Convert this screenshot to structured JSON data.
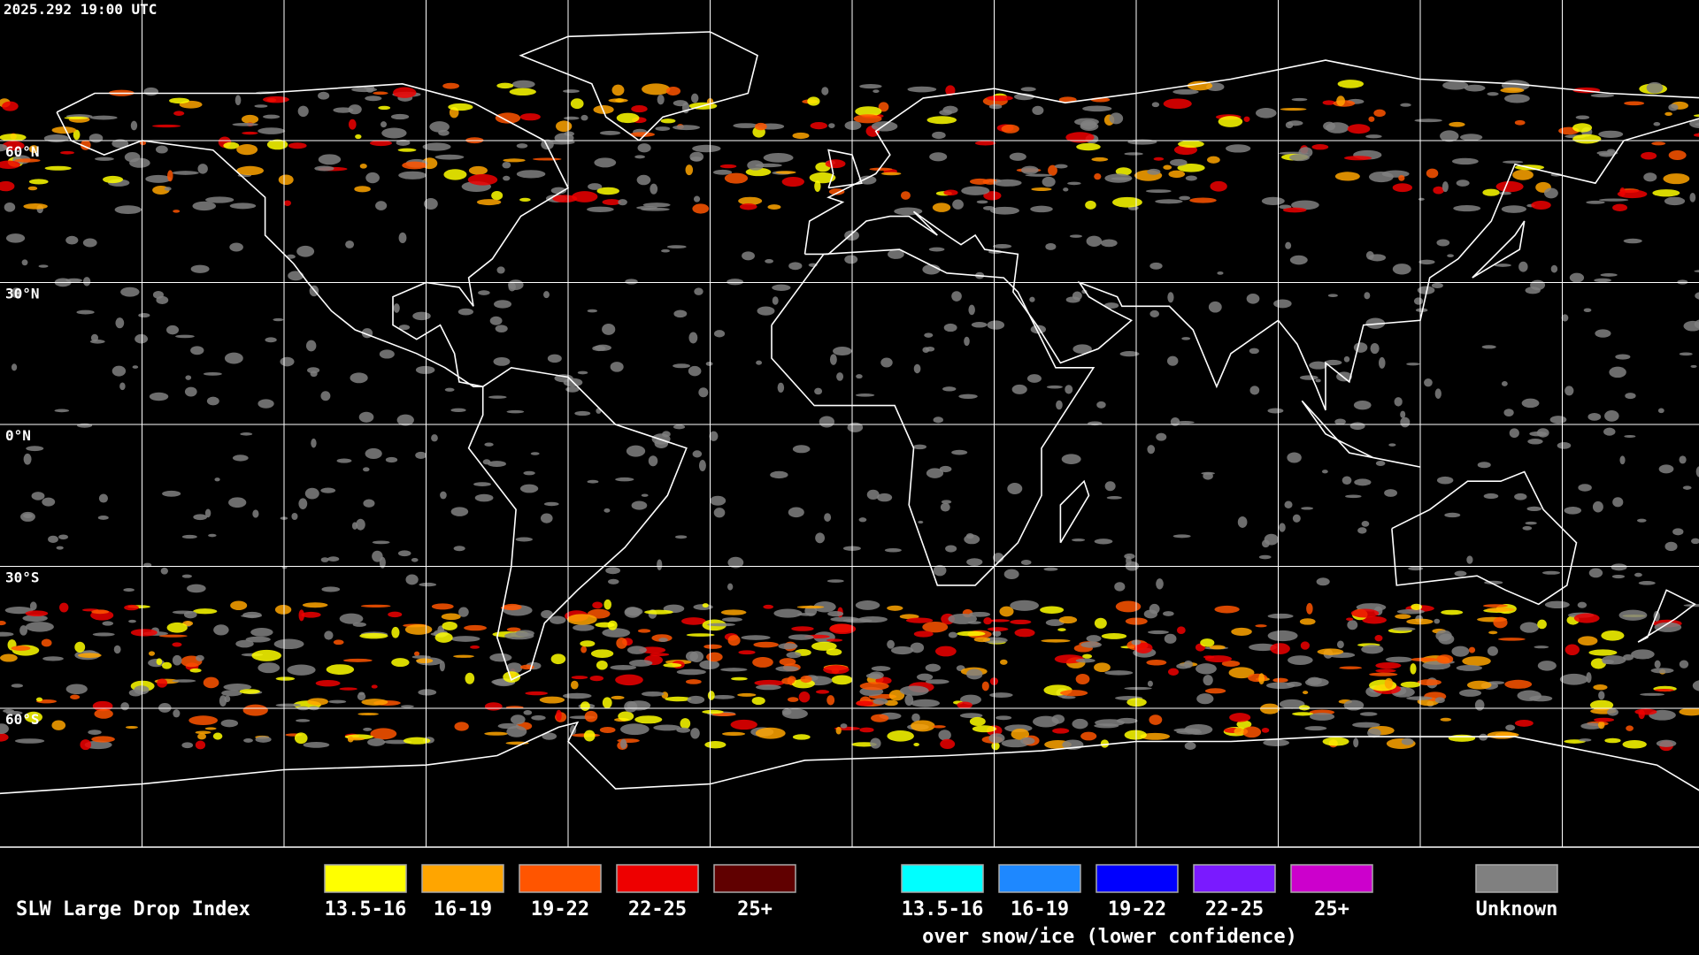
{
  "timestamp": "2025.292 19:00 UTC",
  "latitude_labels": [
    "60°N",
    "30°N",
    "0°N",
    "30°S",
    "60°S"
  ],
  "legend": {
    "title": "SLW Large Drop Index",
    "items": [
      {
        "label": "13.5-16",
        "color": "#ffff00"
      },
      {
        "label": "16-19",
        "color": "#ffa500"
      },
      {
        "label": "19-22",
        "color": "#ff5500"
      },
      {
        "label": "22-25",
        "color": "#ee0000"
      },
      {
        "label": "25+",
        "color": "#600000"
      }
    ],
    "snow_ice_items": [
      {
        "label": "13.5-16",
        "color": "#00ffff"
      },
      {
        "label": "16-19",
        "color": "#1e88ff"
      },
      {
        "label": "19-22",
        "color": "#0000ff"
      },
      {
        "label": "22-25",
        "color": "#7a1aff"
      },
      {
        "label": "25+",
        "color": "#cc00cc"
      }
    ],
    "snow_ice_label": "over snow/ice (lower confidence)",
    "unknown": {
      "label": "Unknown",
      "color": "#808080"
    }
  }
}
